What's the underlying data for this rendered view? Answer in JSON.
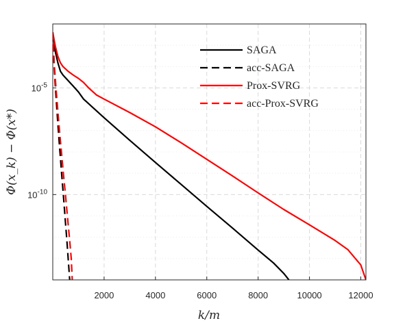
{
  "chart_data": {
    "type": "line",
    "title": "",
    "xlabel": "k/m",
    "ylabel": "Φ(x_k) − Φ(x*)",
    "y_scale": "log",
    "xlim": [
      0,
      12200
    ],
    "ylim": [
      1e-14,
      0.01
    ],
    "x_ticks": [
      2000,
      4000,
      6000,
      8000,
      10000,
      12000
    ],
    "x_tick_labels": [
      "2000",
      "4000",
      "6000",
      "8000",
      "10000",
      "12000"
    ],
    "y_ticks": [
      1e-05,
      1e-10
    ],
    "y_tick_labels": [
      {
        "base": "10",
        "exp": "-5"
      },
      {
        "base": "10",
        "exp": "-10"
      }
    ],
    "grid": true,
    "legend_position": "top-right",
    "series": [
      {
        "name": "SAGA",
        "color": "#000000",
        "dash": "solid",
        "x": [
          0,
          100,
          200,
          300,
          400,
          600,
          800,
          1000,
          1200,
          1600,
          2000,
          3000,
          4000,
          5000,
          6000,
          7000,
          8000,
          8600,
          9000,
          9200
        ],
        "y": [
          0.004,
          0.0005,
          0.00015,
          6e-05,
          4e-05,
          2.2e-05,
          1.2e-05,
          6.5e-06,
          3e-06,
          1.1e-06,
          4e-07,
          3.5e-08,
          3.2e-09,
          3e-10,
          2.8e-11,
          2.7e-12,
          2.5e-13,
          6.2e-14,
          2e-14,
          1e-14
        ]
      },
      {
        "name": "acc-SAGA",
        "color": "#000000",
        "dash": "dashed",
        "x": [
          0,
          50,
          100,
          150,
          200,
          250,
          300,
          350,
          400,
          450,
          500,
          550,
          600,
          660
        ],
        "y": [
          0.004,
          0.00012,
          1.2e-05,
          1.5e-06,
          2e-07,
          3e-08,
          5e-09,
          8e-10,
          1.5e-10,
          2.5e-11,
          4e-12,
          7e-13,
          1e-13,
          1e-14
        ]
      },
      {
        "name": "Prox-SVRG",
        "color": "#ff0000",
        "dash": "solid",
        "x": [
          0,
          100,
          200,
          300,
          400,
          600,
          800,
          1000,
          1200,
          1400,
          1700,
          2000,
          3000,
          4000,
          5000,
          6000,
          7000,
          8000,
          9000,
          10000,
          11000,
          11500,
          12000,
          12200
        ],
        "y": [
          0.004,
          0.0009,
          0.0003,
          0.00015,
          0.0001,
          6e-05,
          4e-05,
          2.8e-05,
          1.8e-05,
          1e-05,
          4.7e-06,
          3e-06,
          7e-07,
          1.5e-07,
          2.7e-08,
          4.5e-09,
          7.5e-10,
          1.2e-10,
          2e-11,
          3.8e-12,
          7e-13,
          2.6e-13,
          5e-14,
          1e-14
        ]
      },
      {
        "name": "acc-Prox-SVRG",
        "color": "#ff0000",
        "dash": "dashed",
        "x": [
          0,
          60,
          120,
          180,
          240,
          300,
          360,
          420,
          480,
          540,
          600,
          660,
          720,
          760
        ],
        "y": [
          0.004,
          0.00012,
          1.2e-05,
          1.5e-06,
          2e-07,
          3e-08,
          5e-09,
          8e-10,
          1.5e-10,
          2.5e-11,
          4e-12,
          7e-13,
          1e-13,
          1e-14
        ]
      }
    ]
  }
}
